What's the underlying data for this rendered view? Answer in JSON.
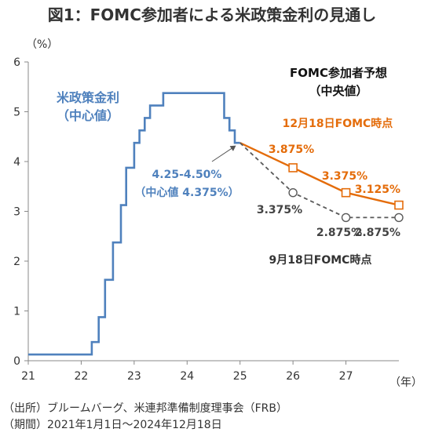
{
  "title": "図1：FOMC参加者による米政策金利の見通し",
  "chart_data": {
    "type": "line",
    "yunit": "（%）",
    "xunit": "（年）",
    "xlim": [
      21,
      27.3
    ],
    "ylim": [
      0,
      6
    ],
    "x_ticks": [
      "21",
      "22",
      "23",
      "24",
      "25",
      "26",
      "27"
    ],
    "y_ticks": [
      "0",
      "1",
      "2",
      "3",
      "4",
      "5",
      "6"
    ],
    "grid": false,
    "policy_rate": {
      "name": "米政策金利（中心値）",
      "name_line1": "米政策金利",
      "name_line2": "（中心値）",
      "color": "#4F81BD",
      "step_points": [
        [
          21.0,
          0.125
        ],
        [
          22.2,
          0.125
        ],
        [
          22.2,
          0.375
        ],
        [
          22.33,
          0.375
        ],
        [
          22.33,
          0.875
        ],
        [
          22.45,
          0.875
        ],
        [
          22.45,
          1.625
        ],
        [
          22.6,
          1.625
        ],
        [
          22.6,
          2.375
        ],
        [
          22.75,
          2.375
        ],
        [
          22.75,
          3.125
        ],
        [
          22.85,
          3.125
        ],
        [
          22.85,
          3.875
        ],
        [
          23.0,
          3.875
        ],
        [
          23.0,
          4.375
        ],
        [
          23.1,
          4.375
        ],
        [
          23.1,
          4.625
        ],
        [
          23.2,
          4.625
        ],
        [
          23.2,
          4.875
        ],
        [
          23.3,
          4.875
        ],
        [
          23.3,
          5.125
        ],
        [
          23.55,
          5.125
        ],
        [
          23.55,
          5.375
        ],
        [
          24.7,
          5.375
        ],
        [
          24.7,
          4.875
        ],
        [
          24.8,
          4.875
        ],
        [
          24.8,
          4.625
        ],
        [
          24.9,
          4.625
        ],
        [
          24.9,
          4.375
        ],
        [
          25.0,
          4.375
        ]
      ]
    },
    "annotation_current": {
      "x": 24.97,
      "y": 4.375,
      "line1": "4.25-4.50%",
      "line2": "（中心値 4.375%）"
    },
    "projection_header": {
      "line1": "FOMC参加者予想",
      "line2": "（中央値）"
    },
    "series": [
      {
        "name": "12月18日FOMC時点",
        "color": "#E46C0A",
        "style": "solid",
        "marker": "square",
        "x": [
          25,
          26,
          27,
          28
        ],
        "y": [
          4.375,
          3.875,
          3.375,
          3.125
        ],
        "labels": [
          "",
          "3.875%",
          "3.375%",
          "3.125%"
        ]
      },
      {
        "name": "9月18日FOMC時点",
        "color": "#595959",
        "style": "dashed",
        "marker": "circle",
        "x": [
          25,
          26,
          27,
          28
        ],
        "y": [
          4.375,
          3.375,
          2.875,
          2.875
        ],
        "labels": [
          "",
          "3.375%",
          "2.875%",
          "2.875%"
        ]
      }
    ]
  },
  "footnotes": [
    "（出所）ブルームバーグ、米連邦準備制度理事会（FRB）",
    "（期間）2021年1月1日～2024年12月18日"
  ]
}
